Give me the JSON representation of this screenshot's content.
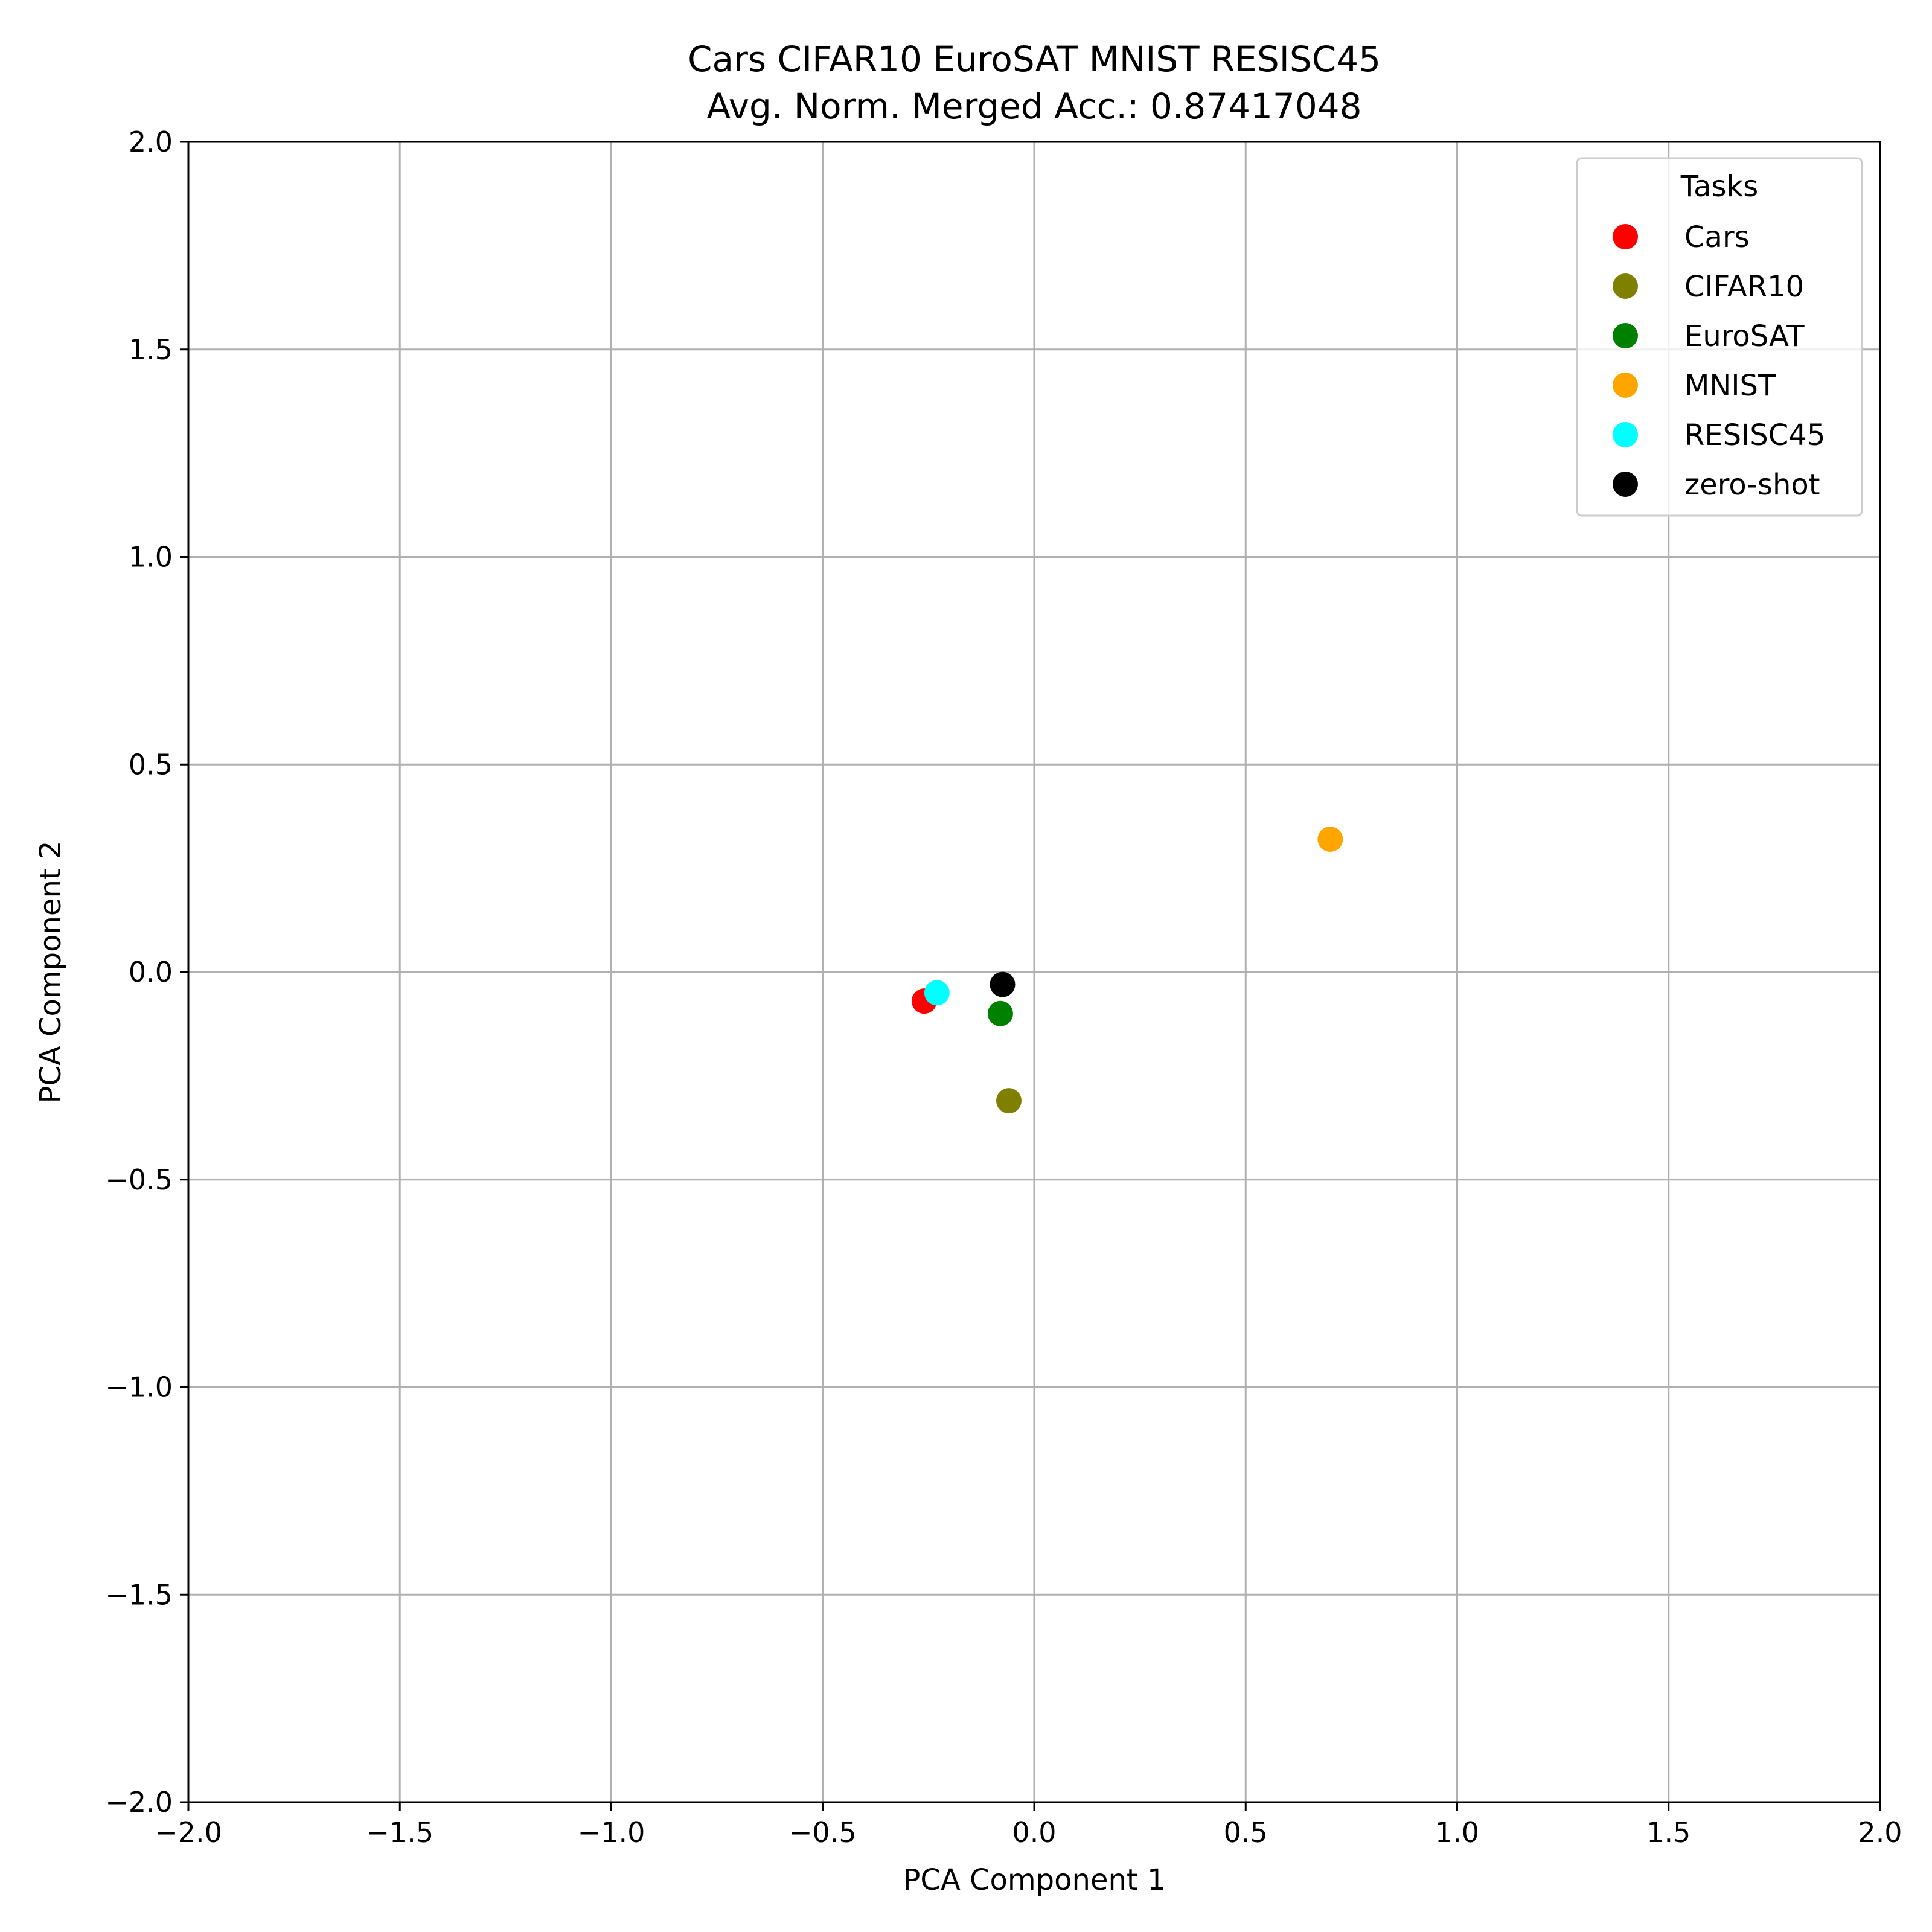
{
  "chart_data": {
    "type": "scatter",
    "title": "Cars CIFAR10 EuroSAT MNIST RESISC45",
    "subtitle": "Avg. Norm. Merged Acc.: 0.87417048",
    "xlabel": "PCA Component 1",
    "ylabel": "PCA Component 2",
    "xlim": [
      -2.0,
      2.0
    ],
    "ylim": [
      -2.0,
      2.0
    ],
    "x_ticks": [
      "−2.0",
      "−1.5",
      "−1.0",
      "−0.5",
      "0.0",
      "0.5",
      "1.0",
      "1.5",
      "2.0"
    ],
    "y_ticks": [
      "−2.0",
      "−1.5",
      "−1.0",
      "−0.5",
      "0.0",
      "0.5",
      "1.0",
      "1.5",
      "2.0"
    ],
    "grid": true,
    "legend": {
      "title": "Tasks",
      "placement": "top-right"
    },
    "series": [
      {
        "name": "Cars",
        "color": "#ff0000",
        "x": [
          -0.26
        ],
        "y": [
          -0.07
        ]
      },
      {
        "name": "CIFAR10",
        "color": "#808000",
        "x": [
          -0.06
        ],
        "y": [
          -0.31
        ]
      },
      {
        "name": "EuroSAT",
        "color": "#008000",
        "x": [
          -0.08
        ],
        "y": [
          -0.1
        ]
      },
      {
        "name": "MNIST",
        "color": "#ffa500",
        "x": [
          0.7
        ],
        "y": [
          0.32
        ]
      },
      {
        "name": "RESISC45",
        "color": "#00ffff",
        "x": [
          -0.23
        ],
        "y": [
          -0.05
        ]
      },
      {
        "name": "zero-shot",
        "color": "#000000",
        "x": [
          -0.075
        ],
        "y": [
          -0.03
        ]
      }
    ]
  }
}
